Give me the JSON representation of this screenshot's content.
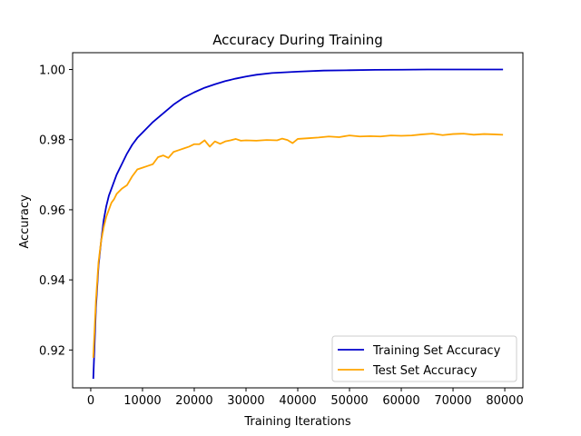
{
  "chart_data": {
    "type": "line",
    "title": "Accuracy During Training",
    "xlabel": "Training Iterations",
    "ylabel": "Accuracy",
    "xlim": [
      -3500,
      83500
    ],
    "ylim": [
      0.9092,
      1.0048
    ],
    "xticks": [
      0,
      10000,
      20000,
      30000,
      40000,
      50000,
      60000,
      70000,
      80000
    ],
    "xtick_labels": [
      "0",
      "10000",
      "20000",
      "30000",
      "40000",
      "50000",
      "60000",
      "70000",
      "80000"
    ],
    "yticks": [
      0.92,
      0.94,
      0.96,
      0.98,
      1.0
    ],
    "ytick_labels": [
      "0.92",
      "0.94",
      "0.96",
      "0.98",
      "1.00"
    ],
    "grid": false,
    "legend_position": "lower-right",
    "series": [
      {
        "name": "Training Set Accuracy",
        "color": "#0000cc",
        "x": [
          500,
          1000,
          1500,
          2000,
          2500,
          3000,
          3500,
          4000,
          4500,
          5000,
          6000,
          7000,
          8000,
          9000,
          10000,
          12000,
          14000,
          16000,
          18000,
          20000,
          22000,
          24000,
          26000,
          28000,
          30000,
          32000,
          35000,
          40000,
          45000,
          50000,
          55000,
          60000,
          65000,
          70000,
          75000,
          79500
        ],
        "y": [
          0.912,
          0.932,
          0.944,
          0.951,
          0.957,
          0.961,
          0.964,
          0.966,
          0.968,
          0.97,
          0.973,
          0.976,
          0.9785,
          0.9805,
          0.982,
          0.985,
          0.9875,
          0.99,
          0.992,
          0.9935,
          0.9948,
          0.9958,
          0.9967,
          0.9974,
          0.998,
          0.9985,
          0.999,
          0.9994,
          0.9997,
          0.9998,
          0.9999,
          0.99995,
          1.0,
          1.0,
          1.0,
          1.0
        ]
      },
      {
        "name": "Test Set Accuracy",
        "color": "#ffa500",
        "x": [
          500,
          1000,
          1500,
          2000,
          2500,
          3000,
          3500,
          4000,
          4500,
          5000,
          6000,
          7000,
          8000,
          9000,
          10000,
          11000,
          12000,
          13000,
          14000,
          15000,
          16000,
          17000,
          18000,
          19000,
          20000,
          21000,
          22000,
          23000,
          24000,
          25000,
          26000,
          27000,
          28000,
          29000,
          30000,
          32000,
          34000,
          36000,
          37000,
          38000,
          39000,
          40000,
          42000,
          44000,
          46000,
          48000,
          50000,
          52000,
          54000,
          56000,
          58000,
          60000,
          62000,
          64000,
          66000,
          68000,
          70000,
          72000,
          74000,
          76000,
          78000,
          79500
        ],
        "y": [
          0.918,
          0.934,
          0.945,
          0.951,
          0.955,
          0.958,
          0.96,
          0.962,
          0.963,
          0.9645,
          0.966,
          0.967,
          0.9695,
          0.9715,
          0.972,
          0.9725,
          0.973,
          0.975,
          0.9755,
          0.9748,
          0.9765,
          0.977,
          0.9775,
          0.978,
          0.9787,
          0.9787,
          0.9798,
          0.978,
          0.9795,
          0.9788,
          0.9795,
          0.9798,
          0.9802,
          0.9797,
          0.9798,
          0.9797,
          0.9799,
          0.9798,
          0.9803,
          0.9799,
          0.979,
          0.9802,
          0.9804,
          0.9806,
          0.9809,
          0.9807,
          0.9812,
          0.9809,
          0.981,
          0.9809,
          0.9812,
          0.9811,
          0.9812,
          0.9815,
          0.9817,
          0.9813,
          0.9816,
          0.9817,
          0.9814,
          0.9816,
          0.9815,
          0.9814
        ]
      }
    ]
  }
}
